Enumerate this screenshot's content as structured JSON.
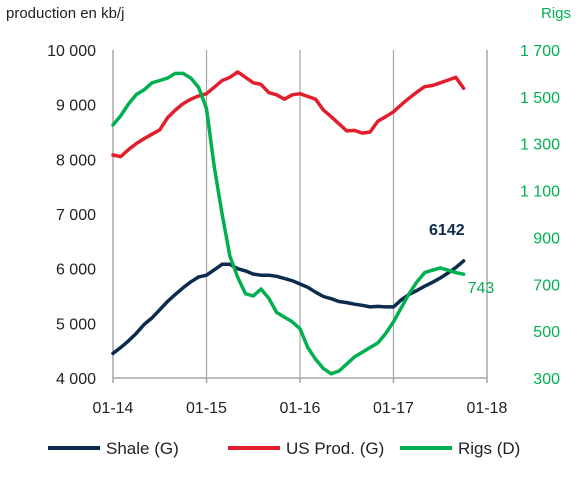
{
  "chart_data": {
    "type": "line",
    "left_axis_title": "production en kb/j",
    "right_axis_title": "Rigs",
    "left_axis": {
      "ylim": [
        4000,
        10000
      ],
      "ticks": [
        4000,
        5000,
        6000,
        7000,
        8000,
        9000,
        10000
      ],
      "tick_labels": [
        "4 000",
        "5 000",
        "6 000",
        "7 000",
        "8 000",
        "9 000",
        "10 000"
      ]
    },
    "right_axis": {
      "ylim": [
        300,
        1700
      ],
      "ticks": [
        300,
        500,
        700,
        900,
        1100,
        1300,
        1500,
        1700
      ],
      "tick_labels": [
        "300",
        "500",
        "700",
        "900",
        "1 100",
        "1 300",
        "1 500",
        "1 700"
      ],
      "color": "#00b050"
    },
    "x_axis": {
      "range": [
        "2014-01",
        "2018-01"
      ],
      "ticks": [
        "2014-01",
        "2015-01",
        "2016-01",
        "2017-01",
        "2018-01"
      ],
      "tick_labels": [
        "01-14",
        "01-15",
        "01-16",
        "01-17",
        "01-18"
      ],
      "vertical_grid": true
    },
    "series": [
      {
        "name": "Shale (G)",
        "axis": "left",
        "color": "#0d2b4e",
        "points": [
          [
            "2014-01",
            4450
          ],
          [
            "2014-02",
            4560
          ],
          [
            "2014-03",
            4680
          ],
          [
            "2014-04",
            4820
          ],
          [
            "2014-05",
            4980
          ],
          [
            "2014-06",
            5100
          ],
          [
            "2014-07",
            5250
          ],
          [
            "2014-08",
            5400
          ],
          [
            "2014-09",
            5530
          ],
          [
            "2014-10",
            5650
          ],
          [
            "2014-11",
            5760
          ],
          [
            "2014-12",
            5850
          ],
          [
            "2015-01",
            5880
          ],
          [
            "2015-02",
            5980
          ],
          [
            "2015-03",
            6080
          ],
          [
            "2015-04",
            6080
          ],
          [
            "2015-05",
            6000
          ],
          [
            "2015-06",
            5960
          ],
          [
            "2015-07",
            5900
          ],
          [
            "2015-08",
            5880
          ],
          [
            "2015-09",
            5880
          ],
          [
            "2015-10",
            5860
          ],
          [
            "2015-11",
            5820
          ],
          [
            "2015-12",
            5780
          ],
          [
            "2016-01",
            5720
          ],
          [
            "2016-02",
            5660
          ],
          [
            "2016-03",
            5570
          ],
          [
            "2016-04",
            5490
          ],
          [
            "2016-05",
            5450
          ],
          [
            "2016-06",
            5400
          ],
          [
            "2016-07",
            5380
          ],
          [
            "2016-08",
            5350
          ],
          [
            "2016-09",
            5330
          ],
          [
            "2016-10",
            5300
          ],
          [
            "2016-11",
            5310
          ],
          [
            "2016-12",
            5300
          ],
          [
            "2017-01",
            5300
          ],
          [
            "2017-02",
            5430
          ],
          [
            "2017-03",
            5530
          ],
          [
            "2017-04",
            5600
          ],
          [
            "2017-05",
            5680
          ],
          [
            "2017-06",
            5750
          ],
          [
            "2017-07",
            5830
          ],
          [
            "2017-08",
            5920
          ],
          [
            "2017-09",
            6020
          ],
          [
            "2017-10",
            6142
          ]
        ]
      },
      {
        "name": "US Prod. (G)",
        "axis": "left",
        "color": "#e31e2c",
        "points": [
          [
            "2014-01",
            8080
          ],
          [
            "2014-02",
            8050
          ],
          [
            "2014-03",
            8180
          ],
          [
            "2014-04",
            8290
          ],
          [
            "2014-05",
            8380
          ],
          [
            "2014-06",
            8460
          ],
          [
            "2014-07",
            8540
          ],
          [
            "2014-08",
            8760
          ],
          [
            "2014-09",
            8900
          ],
          [
            "2014-10",
            9020
          ],
          [
            "2014-11",
            9100
          ],
          [
            "2014-12",
            9160
          ],
          [
            "2015-01",
            9200
          ],
          [
            "2015-02",
            9320
          ],
          [
            "2015-03",
            9440
          ],
          [
            "2015-04",
            9500
          ],
          [
            "2015-05",
            9600
          ],
          [
            "2015-06",
            9500
          ],
          [
            "2015-07",
            9400
          ],
          [
            "2015-08",
            9370
          ],
          [
            "2015-09",
            9220
          ],
          [
            "2015-10",
            9180
          ],
          [
            "2015-11",
            9100
          ],
          [
            "2015-12",
            9180
          ],
          [
            "2016-01",
            9200
          ],
          [
            "2016-02",
            9150
          ],
          [
            "2016-03",
            9100
          ],
          [
            "2016-04",
            8900
          ],
          [
            "2016-05",
            8780
          ],
          [
            "2016-06",
            8650
          ],
          [
            "2016-07",
            8520
          ],
          [
            "2016-08",
            8530
          ],
          [
            "2016-09",
            8480
          ],
          [
            "2016-10",
            8500
          ],
          [
            "2016-11",
            8700
          ],
          [
            "2016-12",
            8780
          ],
          [
            "2017-01",
            8870
          ],
          [
            "2017-02",
            9000
          ],
          [
            "2017-03",
            9120
          ],
          [
            "2017-04",
            9230
          ],
          [
            "2017-05",
            9330
          ],
          [
            "2017-06",
            9350
          ],
          [
            "2017-07",
            9400
          ],
          [
            "2017-08",
            9450
          ],
          [
            "2017-09",
            9500
          ],
          [
            "2017-10",
            9300
          ]
        ]
      },
      {
        "name": "Rigs (D)",
        "axis": "right",
        "color": "#00b050",
        "points": [
          [
            "2014-01",
            1380
          ],
          [
            "2014-02",
            1420
          ],
          [
            "2014-03",
            1470
          ],
          [
            "2014-04",
            1510
          ],
          [
            "2014-05",
            1530
          ],
          [
            "2014-06",
            1560
          ],
          [
            "2014-07",
            1570
          ],
          [
            "2014-08",
            1580
          ],
          [
            "2014-09",
            1600
          ],
          [
            "2014-10",
            1600
          ],
          [
            "2014-11",
            1580
          ],
          [
            "2014-12",
            1540
          ],
          [
            "2015-01",
            1450
          ],
          [
            "2015-02",
            1200
          ],
          [
            "2015-03",
            1000
          ],
          [
            "2015-04",
            820
          ],
          [
            "2015-05",
            730
          ],
          [
            "2015-06",
            660
          ],
          [
            "2015-07",
            650
          ],
          [
            "2015-08",
            680
          ],
          [
            "2015-09",
            640
          ],
          [
            "2015-10",
            580
          ],
          [
            "2015-11",
            560
          ],
          [
            "2015-12",
            540
          ],
          [
            "2016-01",
            510
          ],
          [
            "2016-02",
            430
          ],
          [
            "2016-03",
            380
          ],
          [
            "2016-04",
            340
          ],
          [
            "2016-05",
            318
          ],
          [
            "2016-06",
            330
          ],
          [
            "2016-07",
            360
          ],
          [
            "2016-08",
            390
          ],
          [
            "2016-09",
            410
          ],
          [
            "2016-10",
            430
          ],
          [
            "2016-11",
            450
          ],
          [
            "2016-12",
            490
          ],
          [
            "2017-01",
            540
          ],
          [
            "2017-02",
            600
          ],
          [
            "2017-03",
            660
          ],
          [
            "2017-04",
            710
          ],
          [
            "2017-05",
            750
          ],
          [
            "2017-06",
            760
          ],
          [
            "2017-07",
            770
          ],
          [
            "2017-08",
            760
          ],
          [
            "2017-09",
            750
          ],
          [
            "2017-10",
            743
          ]
        ]
      }
    ],
    "annotations": [
      {
        "series": "Shale (G)",
        "text": "6142",
        "color": "#0d2b4e"
      },
      {
        "series": "Rigs (D)",
        "text": "743",
        "color": "#00b050"
      }
    ],
    "legend": {
      "position": "bottom",
      "entries": [
        {
          "label": "Shale (G)",
          "color": "#0d2b4e"
        },
        {
          "label": "US Prod. (G)",
          "color": "#e31e2c"
        },
        {
          "label": "Rigs (D)",
          "color": "#00b050"
        }
      ]
    }
  }
}
